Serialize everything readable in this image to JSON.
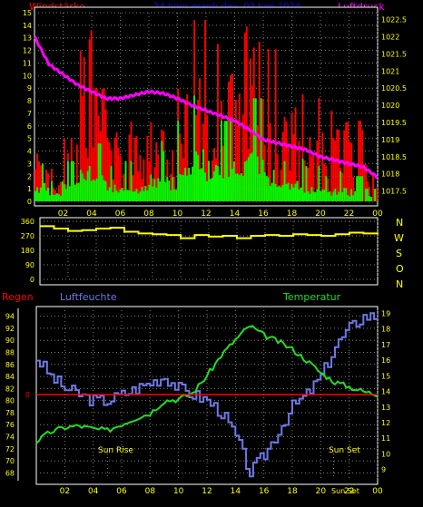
{
  "header": {
    "left_label": "Windstärke",
    "center_title": "24 hour graph day, 03 Juni 2024",
    "right_label": "Luftdruck"
  },
  "panel2": {
    "dir_labels": [
      "N",
      "W",
      "S",
      "O",
      "N"
    ]
  },
  "panel3": {
    "regen_label": "Regen",
    "humidity_label": "Luftfeuchte",
    "temp_label": "Temperatur",
    "sunrise_label": "Sun Rise",
    "sunset_label": "Sun Set",
    "sunset_label2": "Sun Set"
  },
  "colors": {
    "background": "#000000",
    "grid": "#808080",
    "axis": "#ffffff",
    "tick_text": "#ffff00",
    "wind_gust": "#ff0000",
    "wind_avg": "#00ff00",
    "pressure": "#ff00ff",
    "direction": "#ffff00",
    "humidity": "#6e78e6",
    "temperature": "#22dd22",
    "rain": "#ff0000",
    "title": "#0000ff",
    "header_left": "#ff0000",
    "header_right": "#ff00ff",
    "right_axis_green": "#00ff00",
    "dir_labels": "#ffff00"
  },
  "chart_data": [
    {
      "type": "bar",
      "name": "wind",
      "x_tick_labels": [
        "02",
        "04",
        "06",
        "08",
        "10",
        "12",
        "14",
        "16",
        "18",
        "20",
        "22",
        "00"
      ],
      "ylim_left": [
        0,
        15
      ],
      "left_ticks": [
        0,
        1,
        2,
        3,
        4,
        5,
        6,
        7,
        8,
        9,
        10,
        11,
        12,
        13,
        14,
        15
      ],
      "ylim_right": [
        1017.2,
        1022.7
      ],
      "right_ticks": [
        "1017.5",
        "1018",
        "1018.5",
        "1019",
        "1019.5",
        "1020",
        "1020.5",
        "1021",
        "1021.5",
        "1022",
        "1022.5"
      ],
      "gust_hourly": [
        3.8,
        2.6,
        5,
        13.6,
        9,
        6.3,
        6.6,
        5.2,
        6.3,
        6.3,
        10.4,
        14.4,
        12.5,
        11.6,
        13.9,
        13.5,
        12.1,
        6.7,
        8.5,
        8.3,
        7.2,
        6.3,
        6.4,
        3.6
      ],
      "avg_hourly": [
        1.5,
        0.8,
        1.6,
        3.6,
        2.3,
        1.4,
        1.6,
        1.3,
        2.4,
        2,
        3.2,
        4.2,
        3.5,
        3.2,
        4.5,
        4.1,
        2.6,
        1.6,
        1.7,
        1.4,
        1,
        1.2,
        1,
        0.5
      ],
      "pressure": {
        "x_hours": [
          0,
          1,
          2,
          3,
          4,
          5,
          6,
          7,
          8,
          9,
          10,
          11,
          12,
          13,
          14,
          15,
          16,
          17,
          18,
          19,
          20,
          21,
          22,
          23,
          24
        ],
        "values": [
          1022,
          1021.2,
          1020.9,
          1020.6,
          1020.4,
          1020.2,
          1020.2,
          1020.3,
          1020.4,
          1020.35,
          1020.2,
          1020.0,
          1019.85,
          1019.7,
          1019.55,
          1019.3,
          1019.0,
          1018.9,
          1018.8,
          1018.7,
          1018.5,
          1018.4,
          1018.3,
          1018.2,
          1017.9
        ]
      }
    },
    {
      "type": "line",
      "name": "wind_direction",
      "ylim": [
        0,
        360
      ],
      "ticks": [
        0,
        90,
        180,
        270,
        360
      ],
      "x_hours": [
        0,
        1,
        2,
        3,
        4,
        5,
        6,
        7,
        8,
        9,
        10,
        11,
        12,
        13,
        14,
        15,
        16,
        17,
        18,
        19,
        20,
        21,
        22,
        23,
        24
      ],
      "values": [
        330,
        315,
        300,
        305,
        315,
        320,
        295,
        285,
        280,
        275,
        255,
        275,
        265,
        270,
        255,
        270,
        275,
        270,
        280,
        275,
        270,
        280,
        290,
        285,
        280
      ]
    },
    {
      "type": "line",
      "name": "humidity_temperature",
      "ylim_left": [
        67,
        95
      ],
      "left_ticks": [
        68,
        70,
        72,
        74,
        76,
        78,
        80,
        82,
        84,
        86,
        88,
        90,
        92,
        94
      ],
      "ylim_right": [
        8.4,
        19.2
      ],
      "right_ticks": [
        9,
        10,
        11,
        12,
        13,
        14,
        15,
        16,
        17,
        18,
        19
      ],
      "rain_zero_label": "0",
      "humidity": {
        "x_hours": [
          0,
          1,
          2,
          3,
          4,
          5,
          6,
          7,
          8,
          9,
          10,
          11,
          12,
          13,
          14,
          15,
          16,
          17,
          18,
          19,
          20,
          21,
          22,
          23,
          24
        ],
        "values": [
          87,
          84,
          82,
          81,
          80,
          80,
          81,
          82,
          83,
          84,
          82,
          81,
          80,
          78,
          74,
          68,
          71,
          75,
          79,
          81,
          84,
          89,
          92,
          94,
          94
        ]
      },
      "temperature": {
        "x_hours": [
          0,
          1,
          2,
          3,
          4,
          5,
          6,
          7,
          8,
          9,
          10,
          11,
          12,
          13,
          14,
          15,
          16,
          17,
          18,
          19,
          20,
          21,
          22,
          23,
          24
        ],
        "values": [
          10.8,
          11.4,
          11.7,
          11.8,
          11.6,
          11.5,
          11.9,
          12.3,
          12.6,
          13.4,
          13.5,
          13.9,
          15.0,
          16.3,
          17.3,
          18.2,
          17.6,
          17.2,
          16.7,
          16.0,
          15.2,
          14.6,
          14.3,
          14.0,
          13.8
        ]
      },
      "rain_value": 0
    }
  ]
}
